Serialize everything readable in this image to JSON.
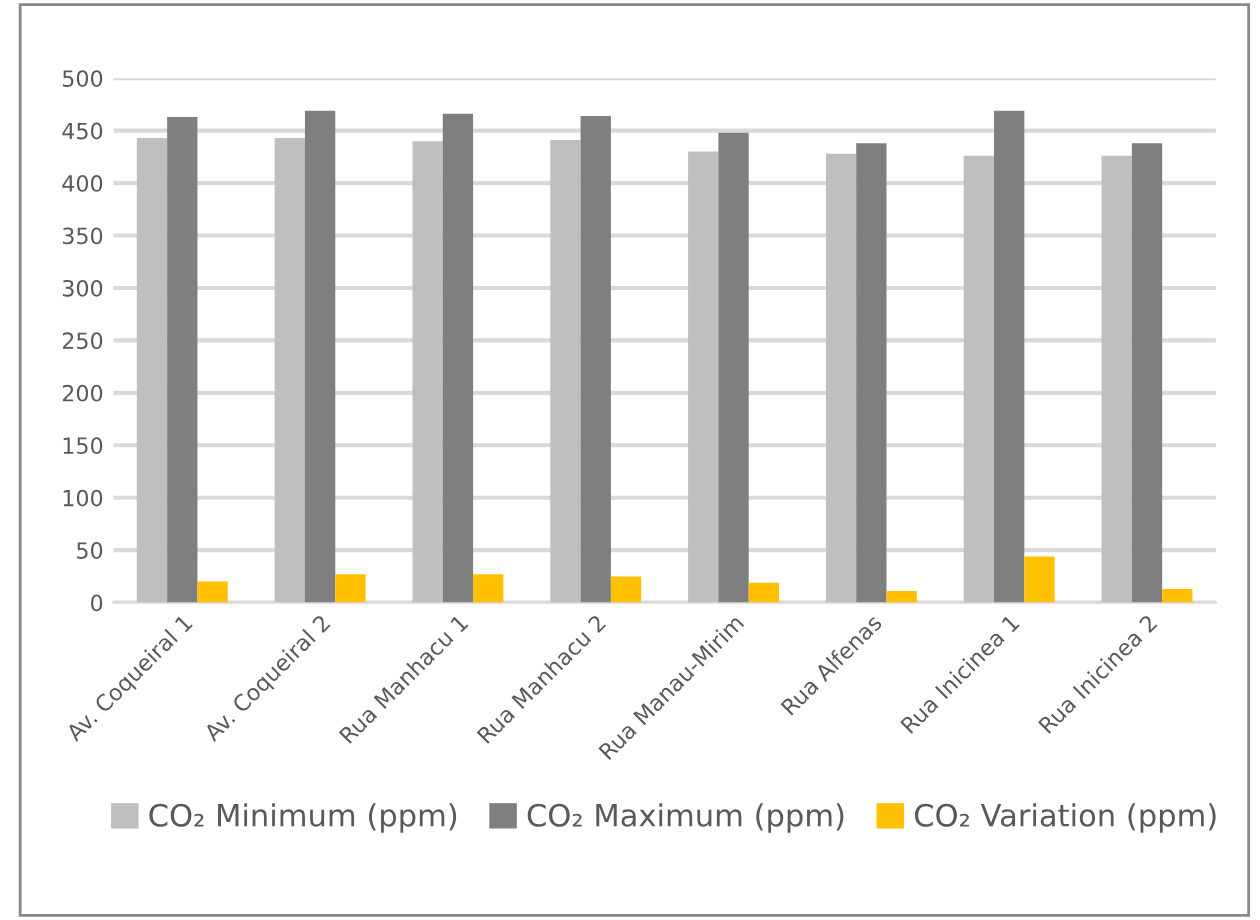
{
  "chart_data": {
    "type": "bar",
    "categories": [
      "Av. Coqueiral 1",
      "Av. Coqueiral 2",
      "Rua Manhacu 1",
      "Rua Manhacu 2",
      "Rua Manau-Mirim",
      "Rua Alfenas",
      "Rua Inicinea 1",
      "Rua Inicinea 2"
    ],
    "series": [
      {
        "name": "CO₂ Minimum (ppm)",
        "color": "#bfbfbf",
        "values": [
          443,
          443,
          440,
          441,
          430,
          428,
          426,
          426
        ]
      },
      {
        "name": "CO₂ Maximum (ppm)",
        "color": "#7f7f7f",
        "values": [
          463,
          469,
          466,
          464,
          448,
          438,
          469,
          438
        ]
      },
      {
        "name": "CO₂ Variation (ppm)",
        "color": "#ffc000",
        "values": [
          20,
          27,
          27,
          25,
          19,
          11,
          44,
          13
        ]
      }
    ],
    "ylim": [
      0,
      500
    ],
    "yticks": [
      0,
      50,
      100,
      150,
      200,
      250,
      300,
      350,
      400,
      450,
      500
    ],
    "grid": "y",
    "legend": "bottom"
  }
}
